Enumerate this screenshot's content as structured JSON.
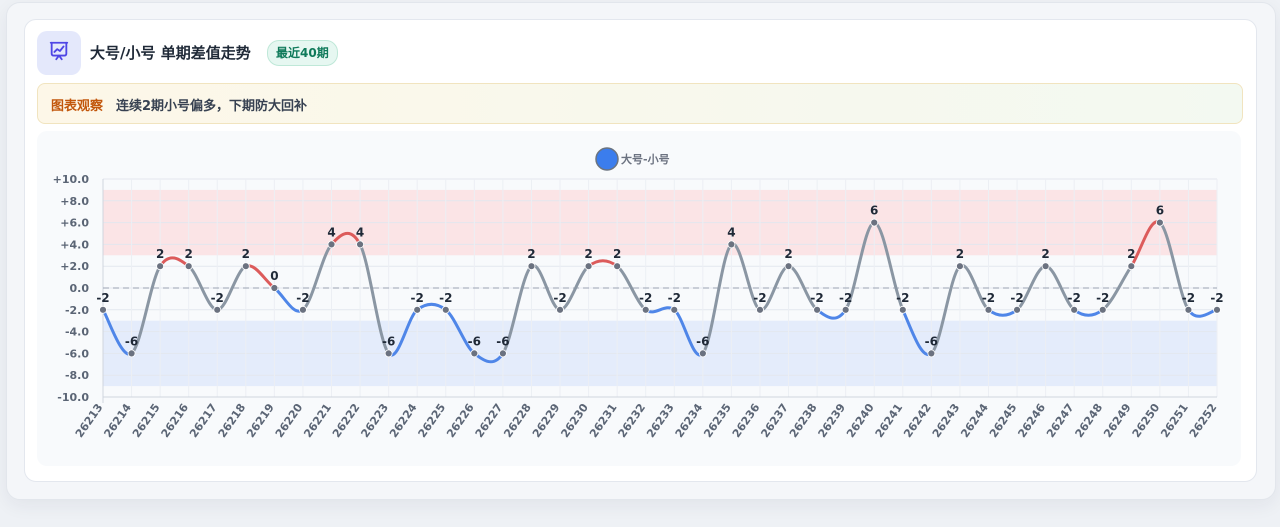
{
  "header": {
    "icon": "presentation-chart-icon",
    "title": "大号/小号 单期差值走势",
    "badge": "最近40期"
  },
  "note": {
    "tag": "图表观察",
    "text": "连续2期小号偏多，下期防大回补"
  },
  "colors": {
    "positive": "#dc5b5b",
    "negative": "#4f86e8",
    "neutral": "#8a96a3",
    "legend": "#3b7ded",
    "badge_bg": "#e6f7f1",
    "accent_icon": "#4f46e5"
  },
  "chart_data": {
    "type": "line",
    "legend": [
      "大号-小号"
    ],
    "x": [
      "26213",
      "26214",
      "26215",
      "26216",
      "26217",
      "26218",
      "26219",
      "26220",
      "26221",
      "26222",
      "26223",
      "26224",
      "26225",
      "26226",
      "26227",
      "26228",
      "26229",
      "26230",
      "26231",
      "26232",
      "26233",
      "26234",
      "26235",
      "26236",
      "26237",
      "26238",
      "26239",
      "26240",
      "26241",
      "26242",
      "26243",
      "26244",
      "26245",
      "26246",
      "26247",
      "26248",
      "26249",
      "26250",
      "26251",
      "26252"
    ],
    "series": [
      {
        "name": "大号-小号",
        "values": [
          -2,
          -6,
          2,
          2,
          -2,
          2,
          0,
          -2,
          4,
          4,
          -6,
          -2,
          -2,
          -6,
          -6,
          2,
          -2,
          2,
          2,
          -2,
          -2,
          -6,
          4,
          -2,
          2,
          -2,
          -2,
          6,
          -2,
          -6,
          2,
          -2,
          -2,
          2,
          -2,
          -2,
          2,
          6,
          -2,
          -2
        ]
      }
    ],
    "ylim": [
      -10,
      10
    ],
    "yticks": [
      -10,
      -8,
      -6,
      -4,
      -2,
      0,
      2,
      4,
      6,
      8,
      10
    ],
    "ytick_labels": [
      "-10.0",
      "-8.0",
      "-6.0",
      "-4.0",
      "-2.0",
      "0.0",
      "+2.0",
      "+4.0",
      "+6.0",
      "+8.0",
      "+10.0"
    ],
    "bands": [
      {
        "from": 3,
        "to": 9,
        "color": "#fbe4e6"
      },
      {
        "from": -9,
        "to": -3,
        "color": "#e4ecfb"
      }
    ],
    "zero_line": "dashed",
    "grid": true,
    "data_labels": true
  }
}
